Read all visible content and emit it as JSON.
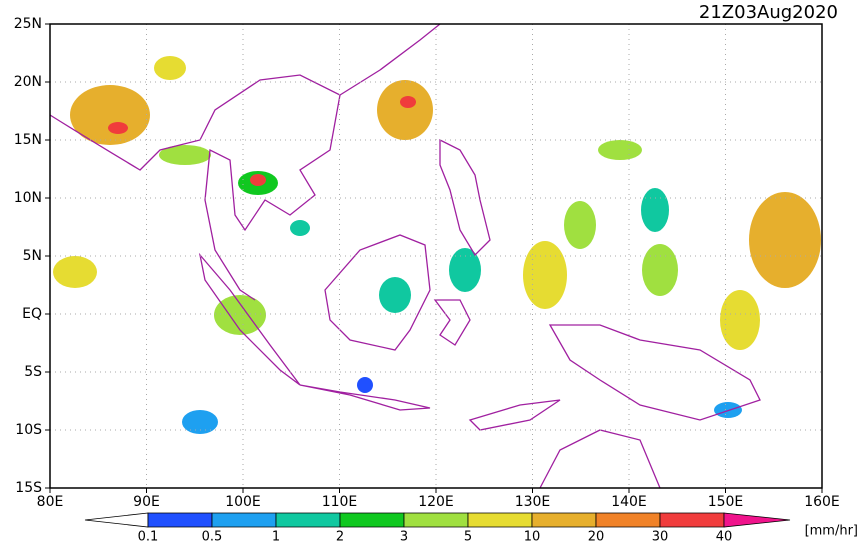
{
  "map": {
    "title": "21Z03Aug2020",
    "xlim": [
      80,
      160
    ],
    "ylim": [
      -15,
      25
    ],
    "xticks": [
      {
        "value": 80,
        "label": "80E"
      },
      {
        "value": 90,
        "label": "90E"
      },
      {
        "value": 100,
        "label": "100E"
      },
      {
        "value": 110,
        "label": "110E"
      },
      {
        "value": 120,
        "label": "120E"
      },
      {
        "value": 130,
        "label": "130E"
      },
      {
        "value": 140,
        "label": "140E"
      },
      {
        "value": 150,
        "label": "150E"
      },
      {
        "value": 160,
        "label": "160E"
      }
    ],
    "yticks": [
      {
        "value": 25,
        "label": "25N"
      },
      {
        "value": 20,
        "label": "20N"
      },
      {
        "value": 15,
        "label": "15N"
      },
      {
        "value": 10,
        "label": "10N"
      },
      {
        "value": 5,
        "label": "5N"
      },
      {
        "value": 0,
        "label": "EQ"
      },
      {
        "value": -5,
        "label": "5S"
      },
      {
        "value": -10,
        "label": "10S"
      },
      {
        "value": -15,
        "label": "15S"
      }
    ],
    "grid": true,
    "colorbar": {
      "levels": [
        0.1,
        0.5,
        1,
        2,
        3,
        5,
        10,
        20,
        30,
        40
      ],
      "colors": [
        "#ffffff",
        "#2050ff",
        "#1ea0f0",
        "#10c8a0",
        "#10c820",
        "#a0e040",
        "#e6dc32",
        "#e6af2d",
        "#f08228",
        "#f03c3c",
        "#f0148c"
      ],
      "units": "[mm/hr]"
    }
  }
}
